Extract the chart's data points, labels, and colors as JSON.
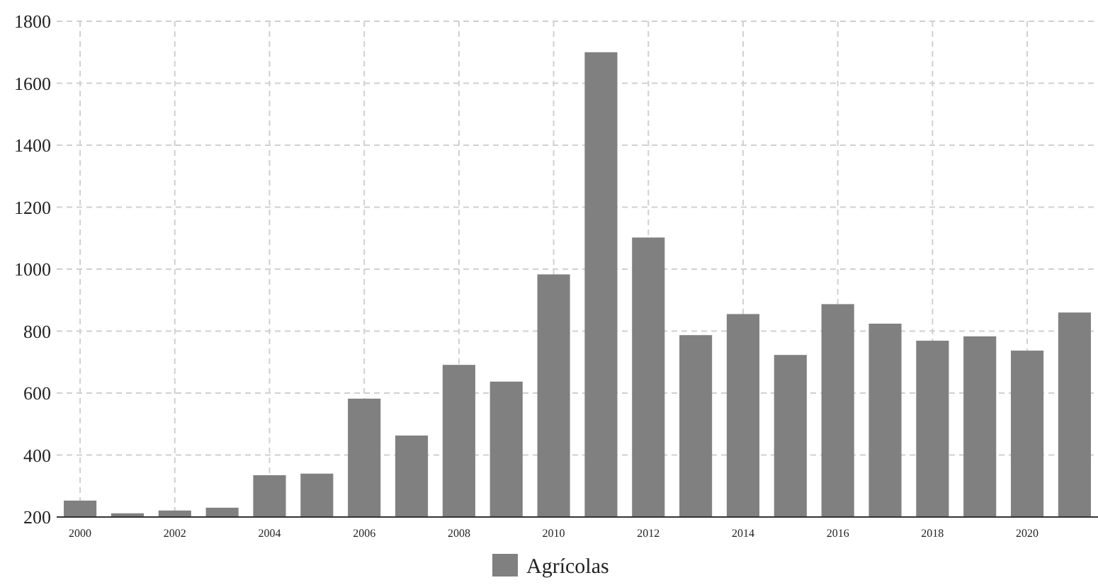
{
  "chart_data": {
    "type": "bar",
    "categories": [
      "2000",
      null,
      "2002",
      null,
      "2004",
      null,
      "2006",
      null,
      "2008",
      null,
      "2010",
      null,
      "2012",
      null,
      "2014",
      null,
      "2016",
      null,
      "2018",
      null,
      "2020",
      null
    ],
    "series": [
      {
        "name": "Agrícolas",
        "color": "#808080",
        "values": [
          253,
          212,
          221,
          230,
          335,
          340,
          582,
          463,
          691,
          637,
          983,
          1700,
          1102,
          787,
          855,
          723,
          887,
          824,
          769,
          783,
          737,
          860
        ]
      }
    ],
    "ylim": [
      200,
      1800
    ],
    "yticks": [
      200,
      400,
      600,
      800,
      1000,
      1200,
      1400,
      1600,
      1800
    ],
    "grid": true,
    "legend": "bottom"
  }
}
